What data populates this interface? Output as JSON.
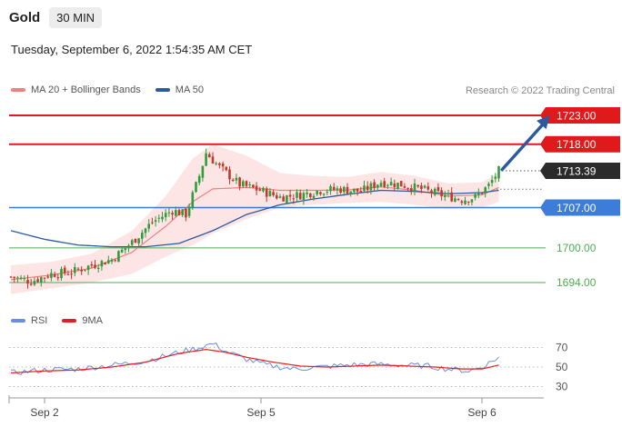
{
  "header": {
    "symbol": "Gold",
    "timeframe": "30 MIN"
  },
  "date_text": "Tuesday, September 6, 2022 1:54:35 AM CET",
  "credit": "Research © 2022 Trading Central",
  "legend": {
    "items": [
      {
        "label": "MA 20 + Bollinger Bands",
        "color": "#f08080"
      },
      {
        "label": "MA 50",
        "color": "#2c5aa0"
      }
    ]
  },
  "rsi_legend": {
    "items": [
      {
        "label": "RSI",
        "color": "#6b8de3"
      },
      {
        "label": "9MA",
        "color": "#e02020"
      }
    ]
  },
  "colors": {
    "resistance": "#e0191b",
    "pivot": "#3b7dd8",
    "support": "#4caf50",
    "current": "#2b2b2b",
    "up_candle": "#2e9e3c",
    "down_candle": "#c0392b",
    "band_fill": "#fde1e1",
    "arrow": "#2c5aa0"
  },
  "chart_data": [
    {
      "type": "candlestick",
      "x_ticks": [
        "Sep 2",
        "Sep 5",
        "Sep 6"
      ],
      "ylim": [
        1691,
        1726
      ],
      "levels": [
        {
          "value": 1723.0,
          "label": "1723.00",
          "kind": "resistance"
        },
        {
          "value": 1718.0,
          "label": "1718.00",
          "kind": "resistance"
        },
        {
          "value": 1713.39,
          "label": "1713.39",
          "kind": "current"
        },
        {
          "value": 1707.0,
          "label": "1707.00",
          "kind": "pivot"
        },
        {
          "value": 1700.0,
          "label": "1700.00",
          "kind": "support"
        },
        {
          "value": 1694.0,
          "label": "1694.00",
          "kind": "support"
        }
      ],
      "close_anchors": [
        [
          0,
          1695.0
        ],
        [
          6,
          1694.2
        ],
        [
          12,
          1695.5
        ],
        [
          18,
          1695.8
        ],
        [
          24,
          1697.0
        ],
        [
          30,
          1698.0
        ],
        [
          36,
          1701.0
        ],
        [
          42,
          1704.5
        ],
        [
          48,
          1706.5
        ],
        [
          52,
          1705.8
        ],
        [
          56,
          1712.5
        ],
        [
          58,
          1716.5
        ],
        [
          62,
          1714.0
        ],
        [
          68,
          1711.0
        ],
        [
          74,
          1710.0
        ],
        [
          80,
          1708.8
        ],
        [
          86,
          1709.2
        ],
        [
          92,
          1710.0
        ],
        [
          98,
          1710.2
        ],
        [
          104,
          1709.8
        ],
        [
          110,
          1711.5
        ],
        [
          116,
          1711.0
        ],
        [
          122,
          1710.2
        ],
        [
          128,
          1709.2
        ],
        [
          134,
          1708.4
        ],
        [
          138,
          1708.8
        ],
        [
          142,
          1710.8
        ],
        [
          145,
          1713.4
        ]
      ],
      "ma50_anchors": [
        [
          0,
          1703.0
        ],
        [
          10,
          1701.5
        ],
        [
          20,
          1700.5
        ],
        [
          30,
          1700.2
        ],
        [
          40,
          1700.2
        ],
        [
          50,
          1700.8
        ],
        [
          60,
          1703.0
        ],
        [
          70,
          1705.8
        ],
        [
          80,
          1707.5
        ],
        [
          90,
          1708.5
        ],
        [
          100,
          1709.3
        ],
        [
          110,
          1710.0
        ],
        [
          120,
          1709.8
        ],
        [
          130,
          1709.4
        ],
        [
          140,
          1709.6
        ],
        [
          145,
          1710.0
        ]
      ],
      "bb_upper_anchors": [
        [
          0,
          1697.0
        ],
        [
          12,
          1697.6
        ],
        [
          24,
          1699.0
        ],
        [
          36,
          1703.0
        ],
        [
          46,
          1709.0
        ],
        [
          54,
          1715.5
        ],
        [
          60,
          1718.0
        ],
        [
          70,
          1716.0
        ],
        [
          80,
          1713.0
        ],
        [
          90,
          1712.5
        ],
        [
          100,
          1712.3
        ],
        [
          110,
          1713.2
        ],
        [
          120,
          1712.5
        ],
        [
          130,
          1711.2
        ],
        [
          140,
          1711.4
        ],
        [
          145,
          1713.0
        ]
      ],
      "bb_lower_anchors": [
        [
          0,
          1692.0
        ],
        [
          12,
          1693.0
        ],
        [
          24,
          1694.0
        ],
        [
          36,
          1695.5
        ],
        [
          46,
          1698.5
        ],
        [
          54,
          1700.5
        ],
        [
          60,
          1702.5
        ],
        [
          70,
          1705.0
        ],
        [
          80,
          1707.0
        ],
        [
          90,
          1707.5
        ],
        [
          100,
          1707.8
        ],
        [
          110,
          1708.0
        ],
        [
          120,
          1707.5
        ],
        [
          130,
          1706.8
        ],
        [
          140,
          1707.0
        ],
        [
          145,
          1708.0
        ]
      ],
      "forecast_arrow": {
        "from": [
          146,
          1713.6
        ],
        "to": [
          158,
          1723.0
        ]
      }
    },
    {
      "type": "line",
      "name": "RSI panel",
      "y_ticks": [
        70,
        50,
        30
      ],
      "ylim": [
        25,
        80
      ],
      "rsi_anchors": [
        [
          0,
          44
        ],
        [
          10,
          47
        ],
        [
          20,
          48
        ],
        [
          30,
          52
        ],
        [
          40,
          56
        ],
        [
          50,
          65
        ],
        [
          56,
          70
        ],
        [
          60,
          74
        ],
        [
          64,
          66
        ],
        [
          70,
          58
        ],
        [
          76,
          52
        ],
        [
          84,
          48
        ],
        [
          92,
          50
        ],
        [
          100,
          52
        ],
        [
          108,
          53
        ],
        [
          116,
          52
        ],
        [
          124,
          51
        ],
        [
          130,
          48
        ],
        [
          136,
          46
        ],
        [
          140,
          50
        ],
        [
          145,
          60
        ]
      ],
      "ma9_anchors": [
        [
          0,
          44
        ],
        [
          10,
          46
        ],
        [
          20,
          47
        ],
        [
          30,
          50
        ],
        [
          40,
          55
        ],
        [
          50,
          64
        ],
        [
          58,
          68
        ],
        [
          64,
          65
        ],
        [
          70,
          60
        ],
        [
          78,
          55
        ],
        [
          86,
          51
        ],
        [
          94,
          50
        ],
        [
          102,
          51
        ],
        [
          110,
          52
        ],
        [
          118,
          51
        ],
        [
          126,
          50
        ],
        [
          134,
          48
        ],
        [
          140,
          48
        ],
        [
          145,
          52
        ]
      ]
    }
  ]
}
